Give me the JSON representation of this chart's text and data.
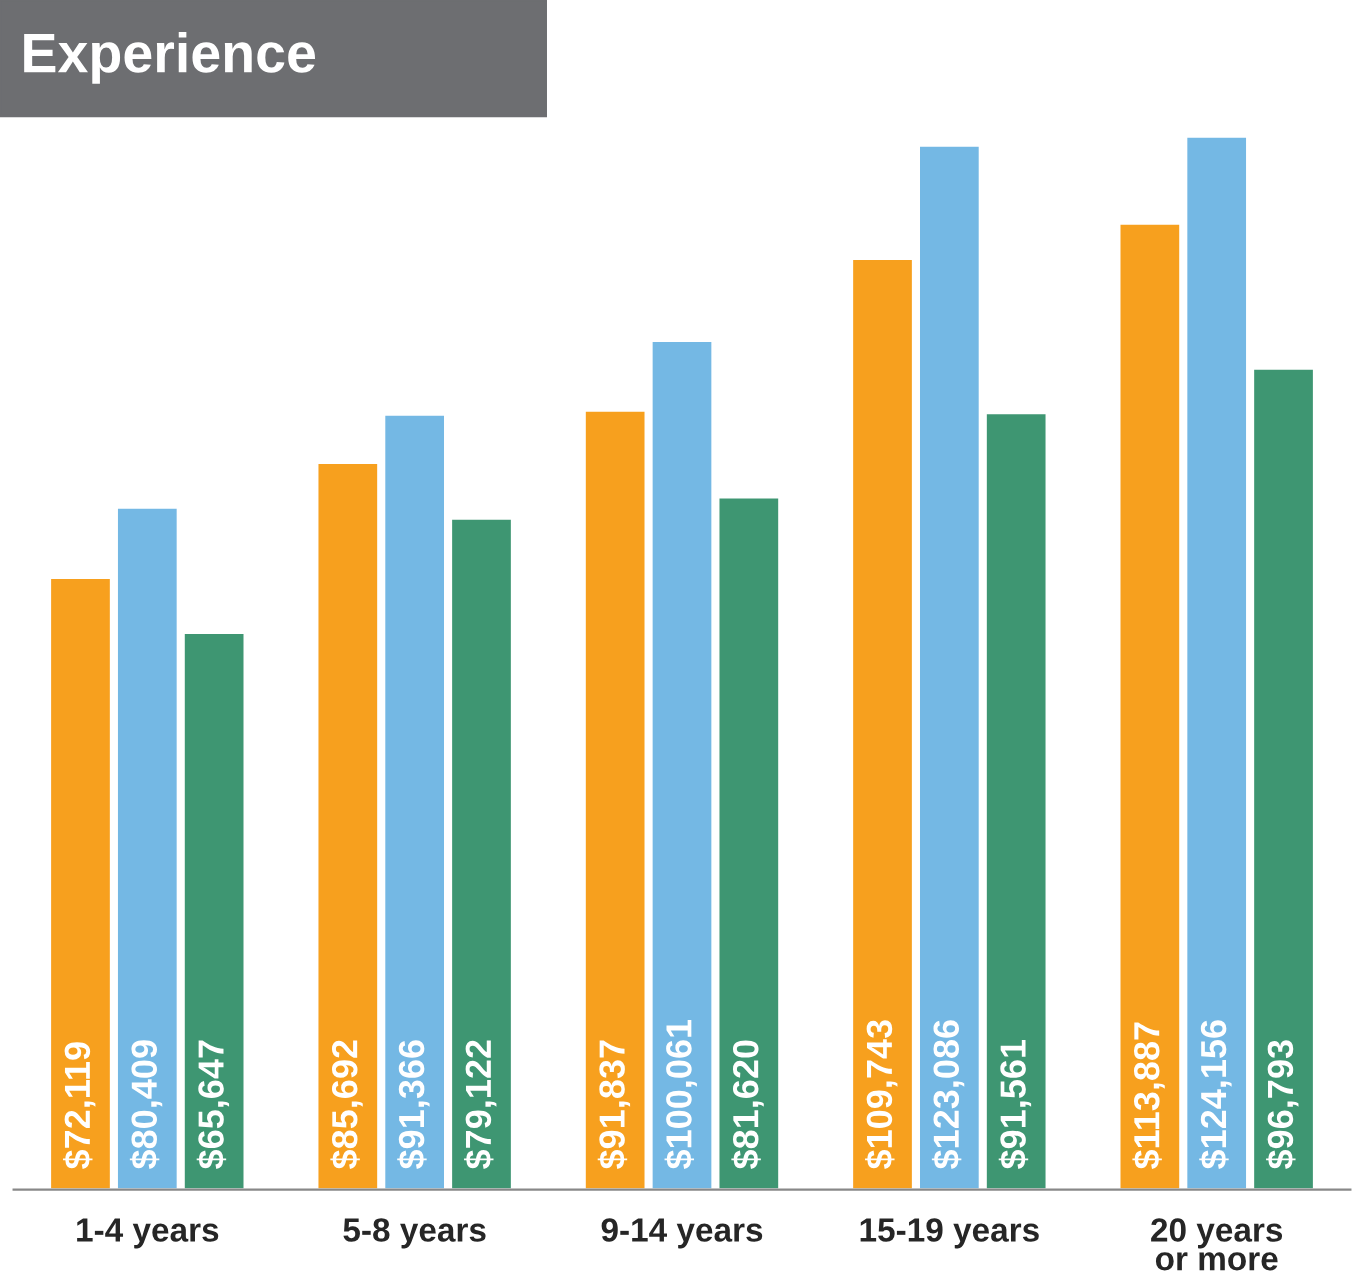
{
  "chart_data": {
    "type": "bar",
    "title": "Experience",
    "categories": [
      "1-4 years",
      "5-8 years",
      "9-14 years",
      "15-19 years",
      "20 years\nor more"
    ],
    "series": [
      {
        "color": "#f7a01e",
        "values": [
          72119,
          85692,
          91837,
          109743,
          113887
        ],
        "value_labels": [
          "$72,119",
          "$85,692",
          "$91,837",
          "$109,743",
          "$113,887"
        ]
      },
      {
        "color": "#74b8e4",
        "values": [
          80409,
          91366,
          100061,
          123086,
          124156
        ],
        "value_labels": [
          "$80,409",
          "$91,366",
          "$100,061",
          "$123,086",
          "$124,156"
        ]
      },
      {
        "color": "#3e9672",
        "values": [
          65647,
          79122,
          81620,
          91561,
          96793
        ],
        "value_labels": [
          "$65,647",
          "$79,122",
          "$81,620",
          "$91,561",
          "$96,793"
        ]
      }
    ],
    "tick_labels": "x",
    "grid": false,
    "legend": false
  }
}
